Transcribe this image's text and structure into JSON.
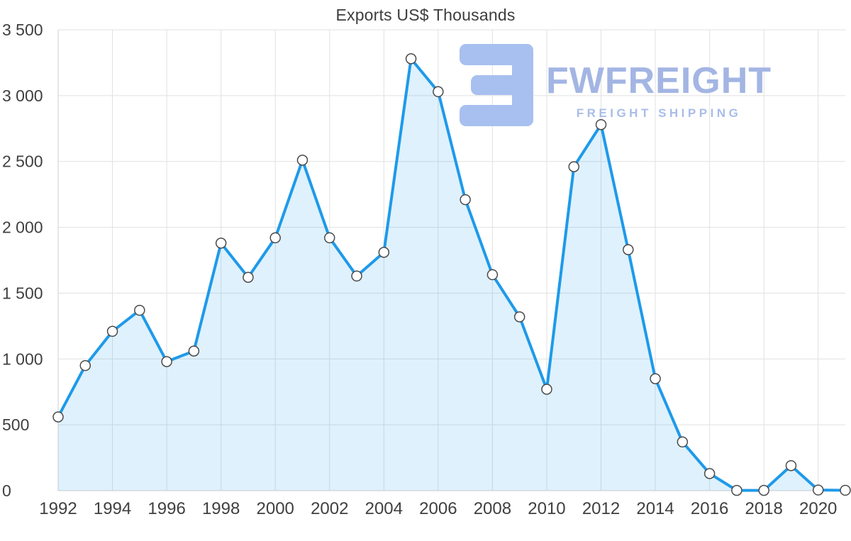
{
  "page": {
    "background": "#ffffff"
  },
  "watermark": {
    "brand": "FWFREIGHT",
    "tagline": "FREIGHT SHIPPING",
    "color": "#a3b5e3"
  },
  "chart_data": {
    "type": "area",
    "title": "Exports US$ Thousands",
    "xlabel": "",
    "ylabel": "",
    "x": [
      1992,
      1993,
      1994,
      1995,
      1996,
      1997,
      1998,
      1999,
      2000,
      2001,
      2002,
      2003,
      2004,
      2005,
      2006,
      2007,
      2008,
      2009,
      2010,
      2011,
      2012,
      2013,
      2014,
      2015,
      2016,
      2017,
      2018,
      2019,
      2020,
      2021
    ],
    "series": [
      {
        "name": "Exports US$ Thousands",
        "values": [
          560,
          950,
          1210,
          1370,
          980,
          1060,
          1880,
          1620,
          1920,
          2510,
          1920,
          1630,
          1810,
          3280,
          3030,
          2210,
          1640,
          1320,
          770,
          2460,
          2780,
          1830,
          850,
          370,
          130,
          2,
          2,
          190,
          5,
          3
        ]
      }
    ],
    "ylim": [
      0,
      3500
    ],
    "ytick_step": 500,
    "ytick_labels": [
      "0",
      "500",
      "1 000",
      "1 500",
      "2 000",
      "2 500",
      "3 000",
      "3 500"
    ],
    "xtick_years": [
      1992,
      1994,
      1996,
      1998,
      2000,
      2002,
      2004,
      2006,
      2008,
      2010,
      2012,
      2014,
      2016,
      2018,
      2020
    ],
    "grid": true,
    "legend": "none",
    "line_color": "#1e9aea",
    "fill_color": "rgba(30, 154, 234, 0.14)",
    "marker_fill": "#ffffff",
    "marker_stroke": "#4a4a4a",
    "grid_color": "#e1e1e1",
    "axis_line_color": "#cfcfcf",
    "axis_text_color": "#404040"
  }
}
